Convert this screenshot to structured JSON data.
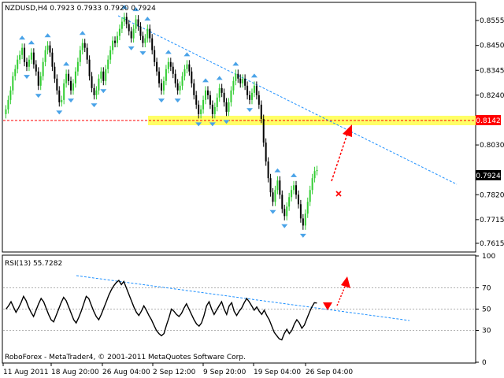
{
  "chart_data": [
    {
      "type": "candlestick",
      "title": "NZDUSD,H4  0.7923 0.7933 0.7920 0.7924",
      "symbol": "NZDUSD",
      "timeframe": "H4",
      "ohlc_last": {
        "open": 0.7923,
        "high": 0.7933,
        "low": 0.792,
        "close": 0.7924
      },
      "ylim": [
        0.7585,
        0.8625
      ],
      "y_ticks": [
        "0.8555",
        "0.8450",
        "0.8345",
        "0.8240",
        "0.8142",
        "0.8030",
        "0.7924",
        "0.7820",
        "0.7715",
        "0.7615"
      ],
      "current_price_label": "0.7924",
      "level_label": "0.8142",
      "level_value": 0.8142,
      "candle_colors": {
        "up": "#32cd32",
        "down": "#000000"
      },
      "closes": [
        0.818,
        0.822,
        0.826,
        0.832,
        0.835,
        0.839,
        0.841,
        0.844,
        0.838,
        0.836,
        0.839,
        0.842,
        0.837,
        0.834,
        0.828,
        0.832,
        0.838,
        0.843,
        0.845,
        0.842,
        0.836,
        0.831,
        0.826,
        0.821,
        0.822,
        0.829,
        0.833,
        0.83,
        0.826,
        0.829,
        0.834,
        0.838,
        0.843,
        0.846,
        0.844,
        0.839,
        0.832,
        0.827,
        0.824,
        0.826,
        0.831,
        0.834,
        0.83,
        0.835,
        0.839,
        0.843,
        0.847,
        0.846,
        0.849,
        0.852,
        0.855,
        0.857,
        0.854,
        0.851,
        0.848,
        0.852,
        0.856,
        0.853,
        0.849,
        0.846,
        0.848,
        0.852,
        0.848,
        0.843,
        0.838,
        0.834,
        0.829,
        0.826,
        0.83,
        0.835,
        0.838,
        0.836,
        0.833,
        0.829,
        0.826,
        0.828,
        0.832,
        0.835,
        0.837,
        0.834,
        0.829,
        0.824,
        0.82,
        0.816,
        0.818,
        0.822,
        0.826,
        0.824,
        0.82,
        0.816,
        0.819,
        0.823,
        0.827,
        0.825,
        0.821,
        0.817,
        0.821,
        0.826,
        0.83,
        0.833,
        0.831,
        0.829,
        0.831,
        0.828,
        0.824,
        0.822,
        0.825,
        0.828,
        0.824,
        0.82,
        0.814,
        0.804,
        0.796,
        0.789,
        0.783,
        0.779,
        0.784,
        0.788,
        0.782,
        0.776,
        0.773,
        0.777,
        0.781,
        0.784,
        0.786,
        0.782,
        0.778,
        0.772,
        0.769,
        0.774,
        0.779,
        0.784,
        0.789,
        0.792,
        0.7924
      ],
      "x_ticks": [
        "11 Aug 2011",
        "18 Aug 20:00",
        "26 Aug 04:00",
        "2 Sep 12:00",
        "9 Sep 20:00",
        "19 Sep 04:00",
        "26 Sep 04:00"
      ],
      "annotations": {
        "trendline": "dashed blue downtrend",
        "forecast_arrow": "red dashed arrow up to 0.8142",
        "stop_marker": "red cross"
      }
    },
    {
      "type": "line",
      "title": "RSI(13) 55.7282",
      "ylim": [
        0,
        100
      ],
      "y_ticks": [
        "100",
        "70",
        "50",
        "30",
        "0"
      ],
      "levels": [
        70,
        50,
        30
      ],
      "values": [
        50,
        53,
        57,
        52,
        47,
        51,
        56,
        62,
        58,
        52,
        47,
        43,
        49,
        55,
        60,
        57,
        51,
        45,
        40,
        38,
        44,
        50,
        56,
        61,
        58,
        52,
        46,
        40,
        37,
        42,
        48,
        55,
        62,
        60,
        54,
        48,
        43,
        40,
        45,
        51,
        57,
        63,
        68,
        72,
        75,
        77,
        73,
        76,
        70,
        64,
        58,
        52,
        47,
        44,
        48,
        53,
        49,
        44,
        40,
        35,
        30,
        27,
        25,
        27,
        35,
        42,
        50,
        48,
        45,
        43,
        46,
        51,
        55,
        50,
        45,
        40,
        36,
        34,
        37,
        44,
        53,
        57,
        50,
        45,
        49,
        53,
        57,
        50,
        45,
        53,
        56,
        48,
        44,
        48,
        51,
        56,
        60,
        57,
        53,
        49,
        52,
        48,
        45,
        49,
        44,
        40,
        34,
        28,
        25,
        22,
        21,
        27,
        31,
        27,
        30,
        36,
        40,
        37,
        32,
        35,
        41,
        47,
        52,
        56,
        55.7282
      ],
      "annotations": {
        "trendline": "dashed blue downtrend",
        "arrow": "red arrow upward"
      }
    }
  ],
  "footer": {
    "copyright": "RoboForex - MetaTrader4, © 2001-2011 MetaQuotes Software Corp."
  }
}
